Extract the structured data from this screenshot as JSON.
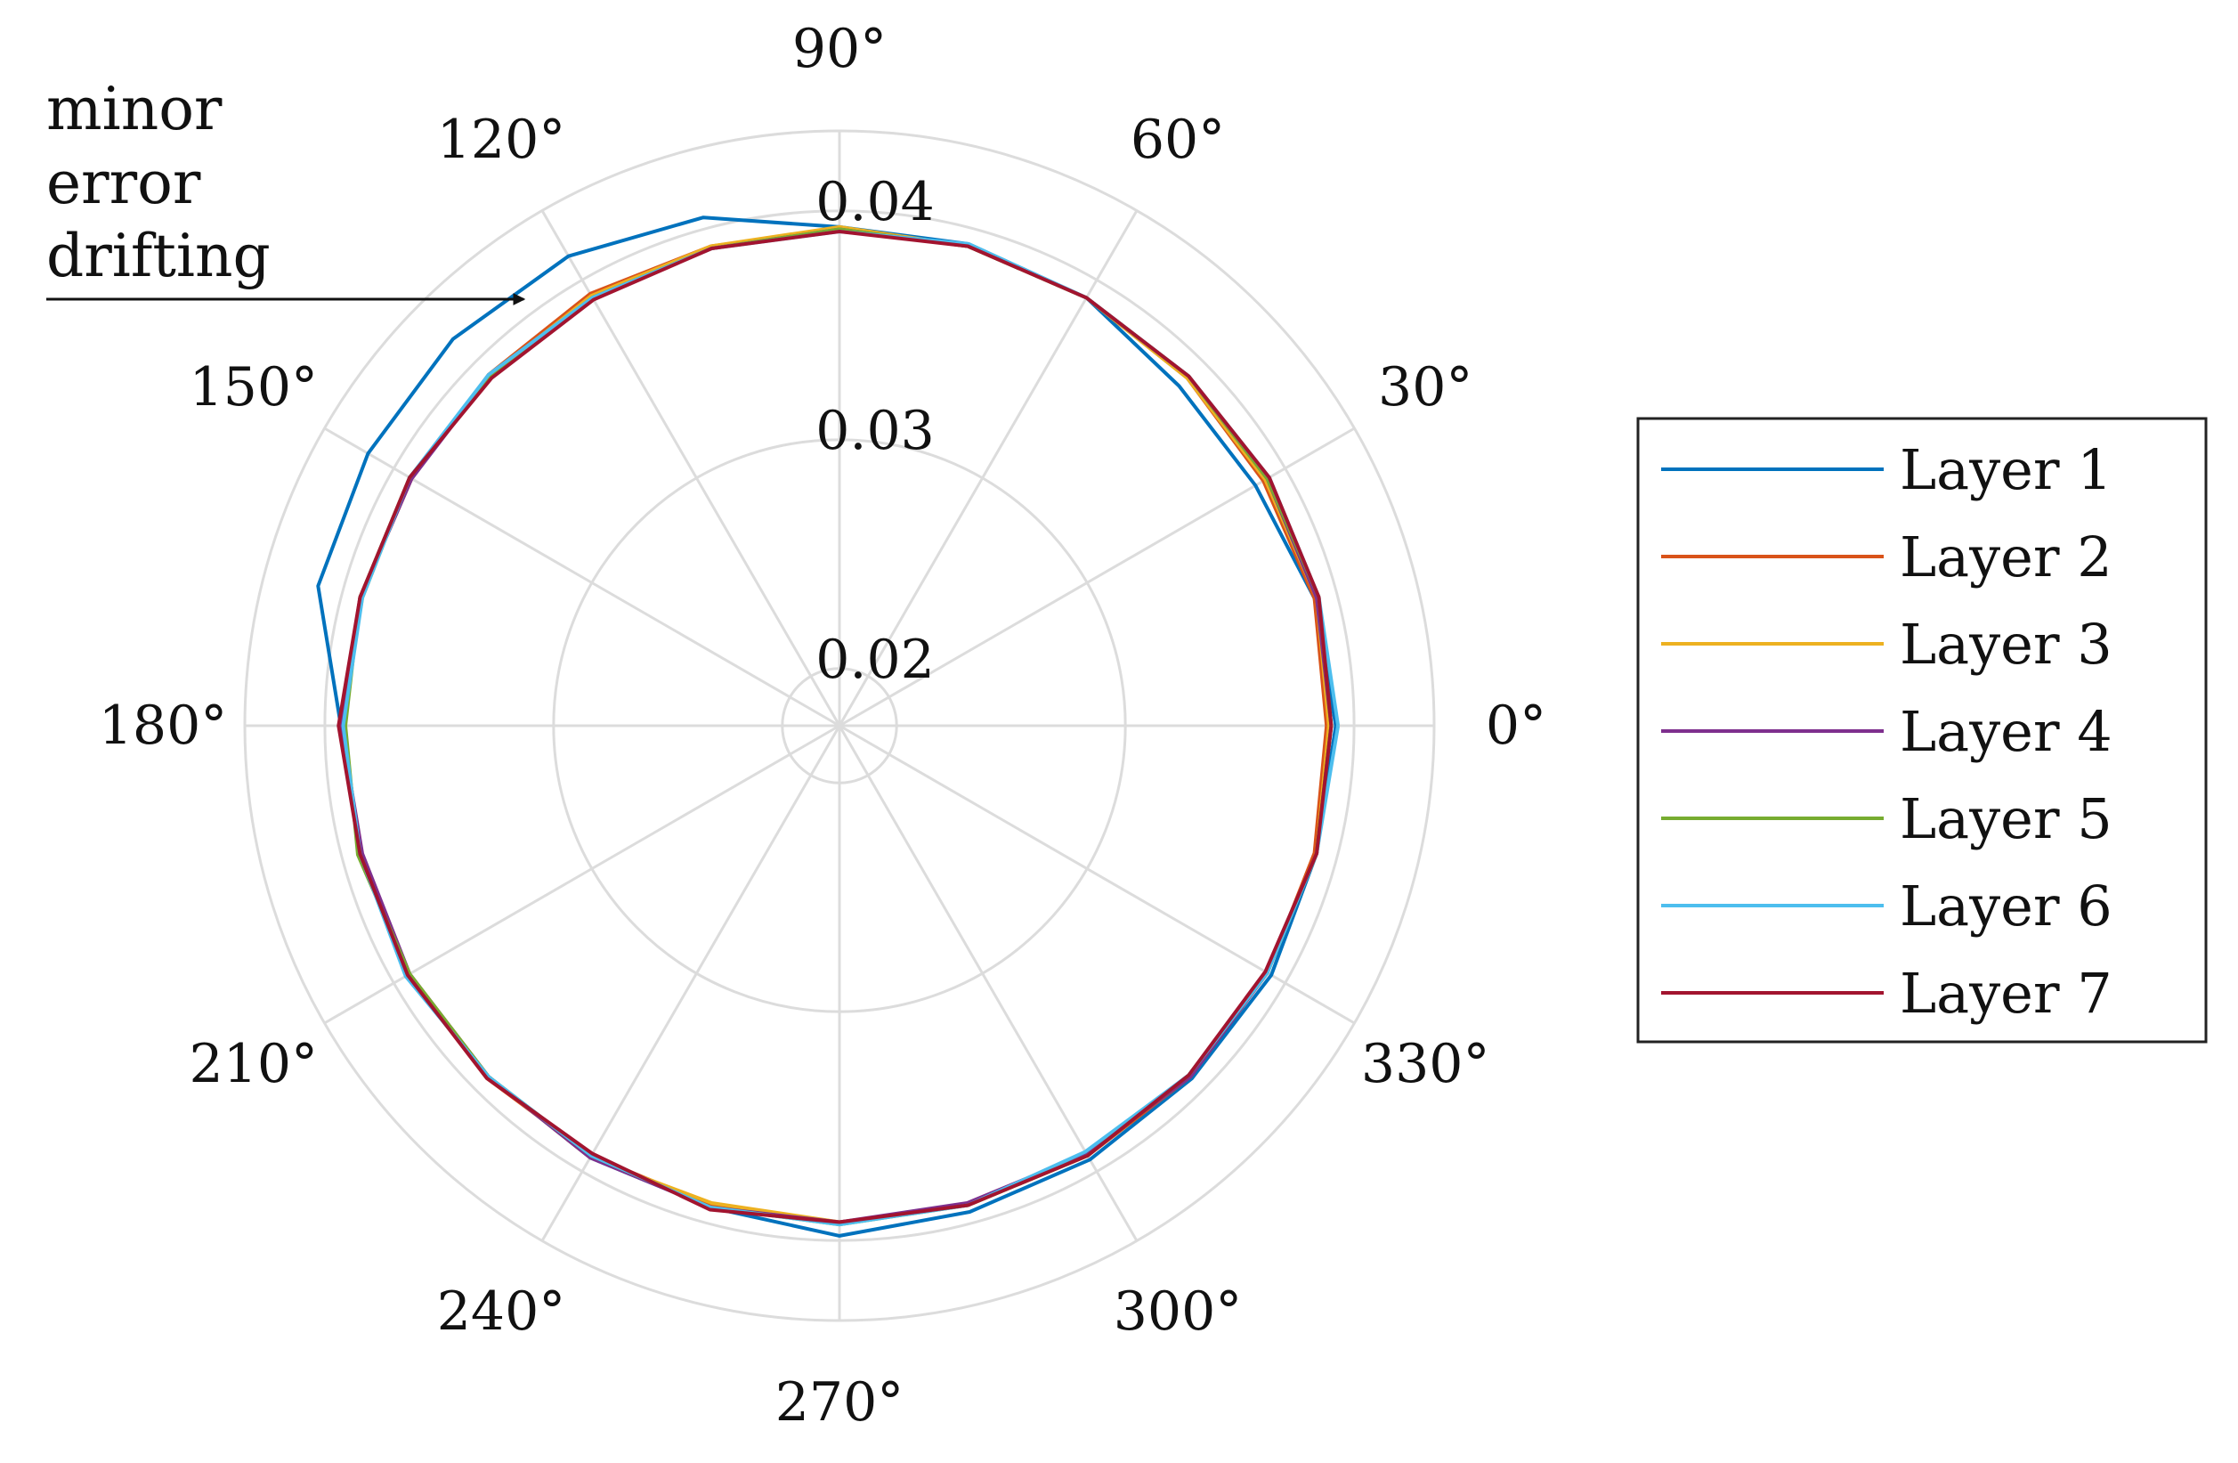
{
  "chart_data": {
    "type": "polar-line",
    "theta_unit": "degrees",
    "theta_ticks": [
      0,
      30,
      60,
      90,
      120,
      150,
      180,
      210,
      240,
      270,
      300,
      330
    ],
    "theta_tick_labels": [
      "0°",
      "30°",
      "60°",
      "90°",
      "120°",
      "150°",
      "180°",
      "210°",
      "240°",
      "270°",
      "300°",
      "330°"
    ],
    "r_lim": [
      0.0175,
      0.0435
    ],
    "r_ticks": [
      0.02,
      0.03,
      0.04
    ],
    "r_tick_labels": [
      "0.02",
      "0.03",
      "0.04"
    ],
    "grid": true,
    "legend_placement": "right",
    "theta": [
      0,
      15,
      30,
      45,
      60,
      75,
      90,
      105,
      120,
      135,
      150,
      165,
      180,
      195,
      210,
      225,
      240,
      255,
      270,
      285,
      300,
      315,
      330,
      345,
      360
    ],
    "series": [
      {
        "name": "Layer 1",
        "color": "#0072BD",
        "r": [
          0.0392,
          0.039,
          0.0385,
          0.0385,
          0.0391,
          0.0393,
          0.0393,
          0.0405,
          0.0412,
          0.0414,
          0.0413,
          0.0411,
          0.0393,
          0.0392,
          0.0393,
          0.0392,
          0.0393,
          0.0393,
          0.0398,
          0.0395,
          0.0394,
          0.0393,
          0.0393,
          0.0391,
          0.0392
        ]
      },
      {
        "name": "Layer 2",
        "color": "#D95319",
        "r": [
          0.0388,
          0.039,
          0.0389,
          0.039,
          0.0391,
          0.0392,
          0.0392,
          0.0392,
          0.0393,
          0.0392,
          0.0391,
          0.0392,
          0.0392,
          0.0392,
          0.0393,
          0.0393,
          0.0392,
          0.0392,
          0.0392,
          0.0392,
          0.0392,
          0.0392,
          0.0391,
          0.039,
          0.0388
        ]
      },
      {
        "name": "Layer 3",
        "color": "#EDB120",
        "r": [
          0.0389,
          0.0391,
          0.039,
          0.039,
          0.0391,
          0.0392,
          0.0393,
          0.0392,
          0.0392,
          0.0391,
          0.0392,
          0.0391,
          0.0393,
          0.0392,
          0.0392,
          0.0392,
          0.0393,
          0.0391,
          0.0392,
          0.0392,
          0.0392,
          0.0391,
          0.0391,
          0.0391,
          0.0389
        ]
      },
      {
        "name": "Layer 4",
        "color": "#7E2F8E",
        "r": [
          0.039,
          0.0391,
          0.0391,
          0.0391,
          0.0391,
          0.0392,
          0.0392,
          0.0391,
          0.0391,
          0.0391,
          0.0391,
          0.0392,
          0.0393,
          0.0391,
          0.0392,
          0.0392,
          0.0393,
          0.0393,
          0.0392,
          0.0391,
          0.0391,
          0.0392,
          0.0391,
          0.0391,
          0.039
        ]
      },
      {
        "name": "Layer 5",
        "color": "#77AC30",
        "r": [
          0.039,
          0.0392,
          0.0391,
          0.0391,
          0.0391,
          0.0392,
          0.0392,
          0.0391,
          0.0391,
          0.0391,
          0.0392,
          0.0392,
          0.0391,
          0.0393,
          0.0392,
          0.0392,
          0.0392,
          0.0393,
          0.0393,
          0.0392,
          0.0392,
          0.0391,
          0.0391,
          0.0391,
          0.039
        ]
      },
      {
        "name": "Layer 6",
        "color": "#4DBEEE",
        "r": [
          0.0393,
          0.0392,
          0.0392,
          0.0391,
          0.0391,
          0.0393,
          0.0391,
          0.0391,
          0.0391,
          0.0392,
          0.0392,
          0.0391,
          0.0392,
          0.0392,
          0.0394,
          0.0392,
          0.0392,
          0.0393,
          0.0393,
          0.0392,
          0.039,
          0.0391,
          0.0391,
          0.0391,
          0.0393
        ]
      },
      {
        "name": "Layer 7",
        "color": "#A2142F",
        "r": [
          0.039,
          0.0392,
          0.0392,
          0.0391,
          0.0391,
          0.0392,
          0.0391,
          0.0391,
          0.039,
          0.039,
          0.0392,
          0.0392,
          0.0394,
          0.0392,
          0.0393,
          0.0393,
          0.0391,
          0.0394,
          0.0392,
          0.0392,
          0.0392,
          0.0391,
          0.039,
          0.0391,
          0.039
        ]
      }
    ],
    "annotation": {
      "lines": [
        "minor",
        "error",
        "drifting"
      ],
      "points_to_theta": 125,
      "points_to_r": 0.0413
    }
  }
}
